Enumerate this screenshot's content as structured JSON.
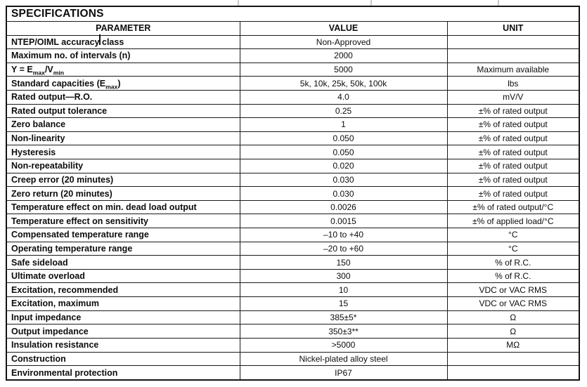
{
  "title": "SPECIFICATIONS",
  "columns": [
    "PARAMETER",
    "VALUE",
    "UNIT"
  ],
  "rows": [
    {
      "parameter": "NTEP/OIML accuracy class",
      "value": "Non-Approved",
      "unit": ""
    },
    {
      "parameter": "Maximum no. of intervals (n)",
      "value": "2000",
      "unit": ""
    },
    {
      "parameter": "Y = E{max}/V{min}",
      "value": "5000",
      "unit": "Maximum available"
    },
    {
      "parameter": "Standard capacities (E{max})",
      "value": "5k, 10k, 25k, 50k, 100k",
      "unit": "lbs"
    },
    {
      "parameter": "Rated output—R.O.",
      "value": "4.0",
      "unit": "mV/V"
    },
    {
      "parameter": "Rated output tolerance",
      "value": "0.25",
      "unit": "±% of rated output"
    },
    {
      "parameter": "Zero balance",
      "value": "1",
      "unit": "±% of rated output"
    },
    {
      "parameter": "Non-linearity",
      "value": "0.050",
      "unit": "±% of rated output"
    },
    {
      "parameter": "Hysteresis",
      "value": "0.050",
      "unit": "±% of rated output"
    },
    {
      "parameter": "Non-repeatability",
      "value": "0.020",
      "unit": "±% of rated output"
    },
    {
      "parameter": "Creep error (20 minutes)",
      "value": "0.030",
      "unit": "±% of rated output"
    },
    {
      "parameter": "Zero return (20 minutes)",
      "value": "0.030",
      "unit": "±% of rated output"
    },
    {
      "parameter": "Temperature effect on min. dead load output",
      "value": "0.0026",
      "unit": "±% of rated output/°C"
    },
    {
      "parameter": "Temperature effect on sensitivity",
      "value": "0.0015",
      "unit": "±% of applied load/°C"
    },
    {
      "parameter": "Compensated temperature range",
      "value": "–10 to +40",
      "unit": "°C"
    },
    {
      "parameter": "Operating temperature range",
      "value": "–20 to +60",
      "unit": "°C"
    },
    {
      "parameter": "Safe sideload",
      "value": "150",
      "unit": "% of R.C."
    },
    {
      "parameter": "Ultimate overload",
      "value": "300",
      "unit": "% of R.C."
    },
    {
      "parameter": "Excitation, recommended",
      "value": "10",
      "unit": "VDC or VAC RMS"
    },
    {
      "parameter": "Excitation, maximum",
      "value": "15",
      "unit": "VDC or VAC RMS"
    },
    {
      "parameter": "Input impedance",
      "value": "385±5*",
      "unit": "Ω"
    },
    {
      "parameter": "Output impedance",
      "value": "350±3**",
      "unit": "Ω"
    },
    {
      "parameter": "Insulation resistance",
      "value": ">5000",
      "unit": "MΩ"
    },
    {
      "parameter": "Construction",
      "value": "Nickel-plated alloy steel",
      "unit": ""
    },
    {
      "parameter": "Environmental protection",
      "value": "IP67",
      "unit": ""
    }
  ]
}
